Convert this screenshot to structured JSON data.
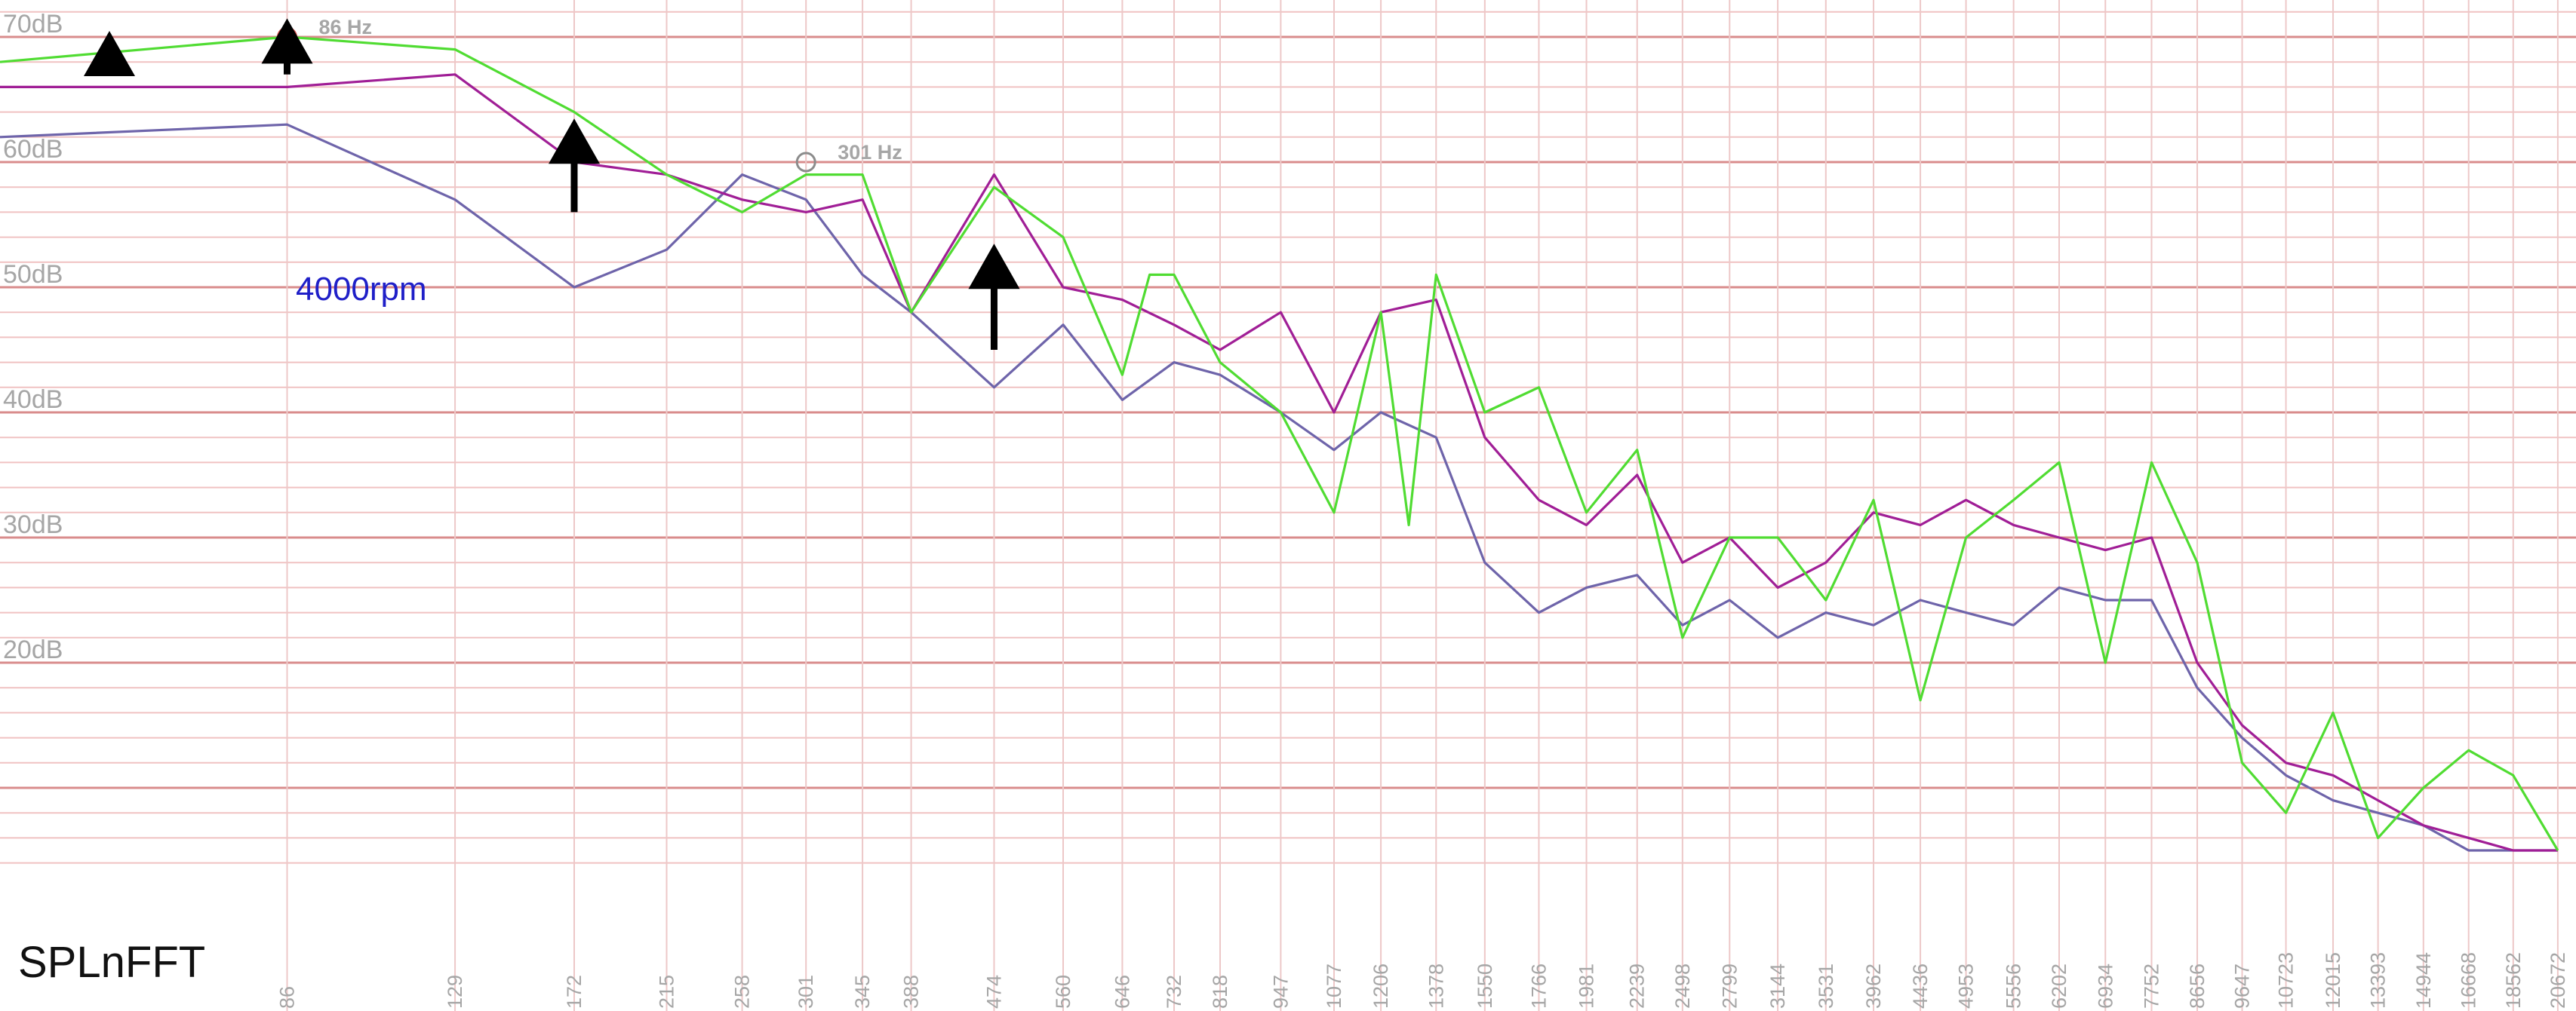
{
  "app_label": "SPLnFFT",
  "chart_data": {
    "type": "line",
    "title": "",
    "xlabel": "",
    "ylabel": "",
    "x_scale": "log",
    "grid": true,
    "y_tick_labels": [
      "70dB",
      "60dB",
      "50dB",
      "40dB",
      "30dB",
      "20dB"
    ],
    "y_ticks": [
      70,
      60,
      50,
      40,
      30,
      20
    ],
    "ylim": [
      3,
      72
    ],
    "x_tick_labels": [
      "86",
      "129",
      "172",
      "215",
      "258",
      "301",
      "345",
      "388",
      "474",
      "560",
      "646",
      "732",
      "818",
      "947",
      "1077",
      "1206",
      "1378",
      "1550",
      "1766",
      "1981",
      "2239",
      "2498",
      "2799",
      "3144",
      "3531",
      "3962",
      "4436",
      "4953",
      "5556",
      "6202",
      "6934",
      "7752",
      "8656",
      "9647",
      "10723",
      "12015",
      "13393",
      "14944",
      "16668",
      "18562",
      "20672"
    ],
    "x_ticks": [
      86,
      129,
      172,
      215,
      258,
      301,
      345,
      388,
      474,
      560,
      646,
      732,
      818,
      947,
      1077,
      1206,
      1378,
      1550,
      1766,
      1981,
      2239,
      2498,
      2799,
      3144,
      3531,
      3962,
      4436,
      4953,
      5556,
      6202,
      6934,
      7752,
      8656,
      9647,
      10723,
      12015,
      13393,
      14944,
      16668,
      18562,
      20672
    ],
    "xlim": [
      43,
      21600
    ],
    "annotations": {
      "rpm_label": "4000rpm",
      "markers": [
        {
          "x": 86,
          "y": 70,
          "label": "86 Hz",
          "color": "#d9534f"
        },
        {
          "x": 301,
          "y": 60,
          "label": "301 Hz",
          "color": "#8c8c8c"
        }
      ],
      "arrows": [
        {
          "x": 56,
          "y_from": 67,
          "y_to": 70
        },
        {
          "x": 86,
          "y_from": 67,
          "y_to": 71
        },
        {
          "x": 172,
          "y_from": 56,
          "y_to": 63
        },
        {
          "x": 474,
          "y_from": 45,
          "y_to": 53
        }
      ]
    },
    "colors": {
      "green": "#50dc32",
      "magenta": "#a01e96",
      "violet": "#6e64aa"
    },
    "series": [
      {
        "color": "green",
        "x": [
          43,
          86,
          129,
          172,
          215,
          258,
          301,
          345,
          388,
          474,
          560,
          646,
          690,
          732,
          818,
          947,
          1077,
          1206,
          1290,
          1378,
          1550,
          1766,
          1981,
          2239,
          2498,
          2799,
          3144,
          3531,
          3962,
          4436,
          4953,
          5556,
          6202,
          6934,
          7752,
          8656,
          9647,
          10723,
          12015,
          13393,
          14944,
          16668,
          18562,
          20672
        ],
        "y": [
          68,
          70,
          69,
          64,
          59,
          56,
          59,
          59,
          48,
          58,
          54,
          43,
          51,
          51,
          44,
          40,
          32,
          48,
          31,
          51,
          40,
          42,
          32,
          37,
          22,
          30,
          30,
          25,
          33,
          17,
          30,
          33,
          36,
          20,
          36,
          28,
          12,
          8,
          16,
          6,
          10,
          13,
          11,
          5
        ]
      },
      {
        "color": "magenta",
        "x": [
          43,
          86,
          129,
          172,
          215,
          258,
          301,
          345,
          388,
          474,
          560,
          646,
          732,
          818,
          947,
          1077,
          1206,
          1378,
          1550,
          1766,
          1981,
          2239,
          2498,
          2799,
          3144,
          3531,
          3962,
          4436,
          4953,
          5556,
          6202,
          6934,
          7752,
          8656,
          9647,
          10723,
          12015,
          13393,
          14944,
          16668,
          18562,
          20672
        ],
        "y": [
          66,
          66,
          67,
          60,
          59,
          57,
          56,
          57,
          48,
          59,
          50,
          49,
          47,
          45,
          48,
          40,
          48,
          49,
          38,
          33,
          31,
          35,
          28,
          30,
          26,
          28,
          32,
          31,
          33,
          31,
          30,
          29,
          30,
          20,
          15,
          12,
          11,
          9,
          7,
          6,
          5,
          5
        ]
      },
      {
        "color": "violet",
        "x": [
          43,
          86,
          129,
          172,
          215,
          258,
          301,
          345,
          388,
          474,
          560,
          646,
          732,
          818,
          947,
          1077,
          1206,
          1378,
          1550,
          1766,
          1981,
          2239,
          2498,
          2799,
          3144,
          3531,
          3962,
          4436,
          4953,
          5556,
          6202,
          6934,
          7752,
          8656,
          9647,
          10723,
          12015,
          13393,
          14944,
          16668,
          18562,
          20672
        ],
        "y": [
          62,
          63,
          57,
          50,
          53,
          59,
          57,
          51,
          48,
          42,
          47,
          41,
          44,
          43,
          40,
          37,
          40,
          38,
          28,
          24,
          26,
          27,
          23,
          25,
          22,
          24,
          23,
          25,
          24,
          23,
          26,
          25,
          25,
          18,
          14,
          11,
          9,
          8,
          7,
          5,
          5,
          5
        ]
      }
    ]
  }
}
